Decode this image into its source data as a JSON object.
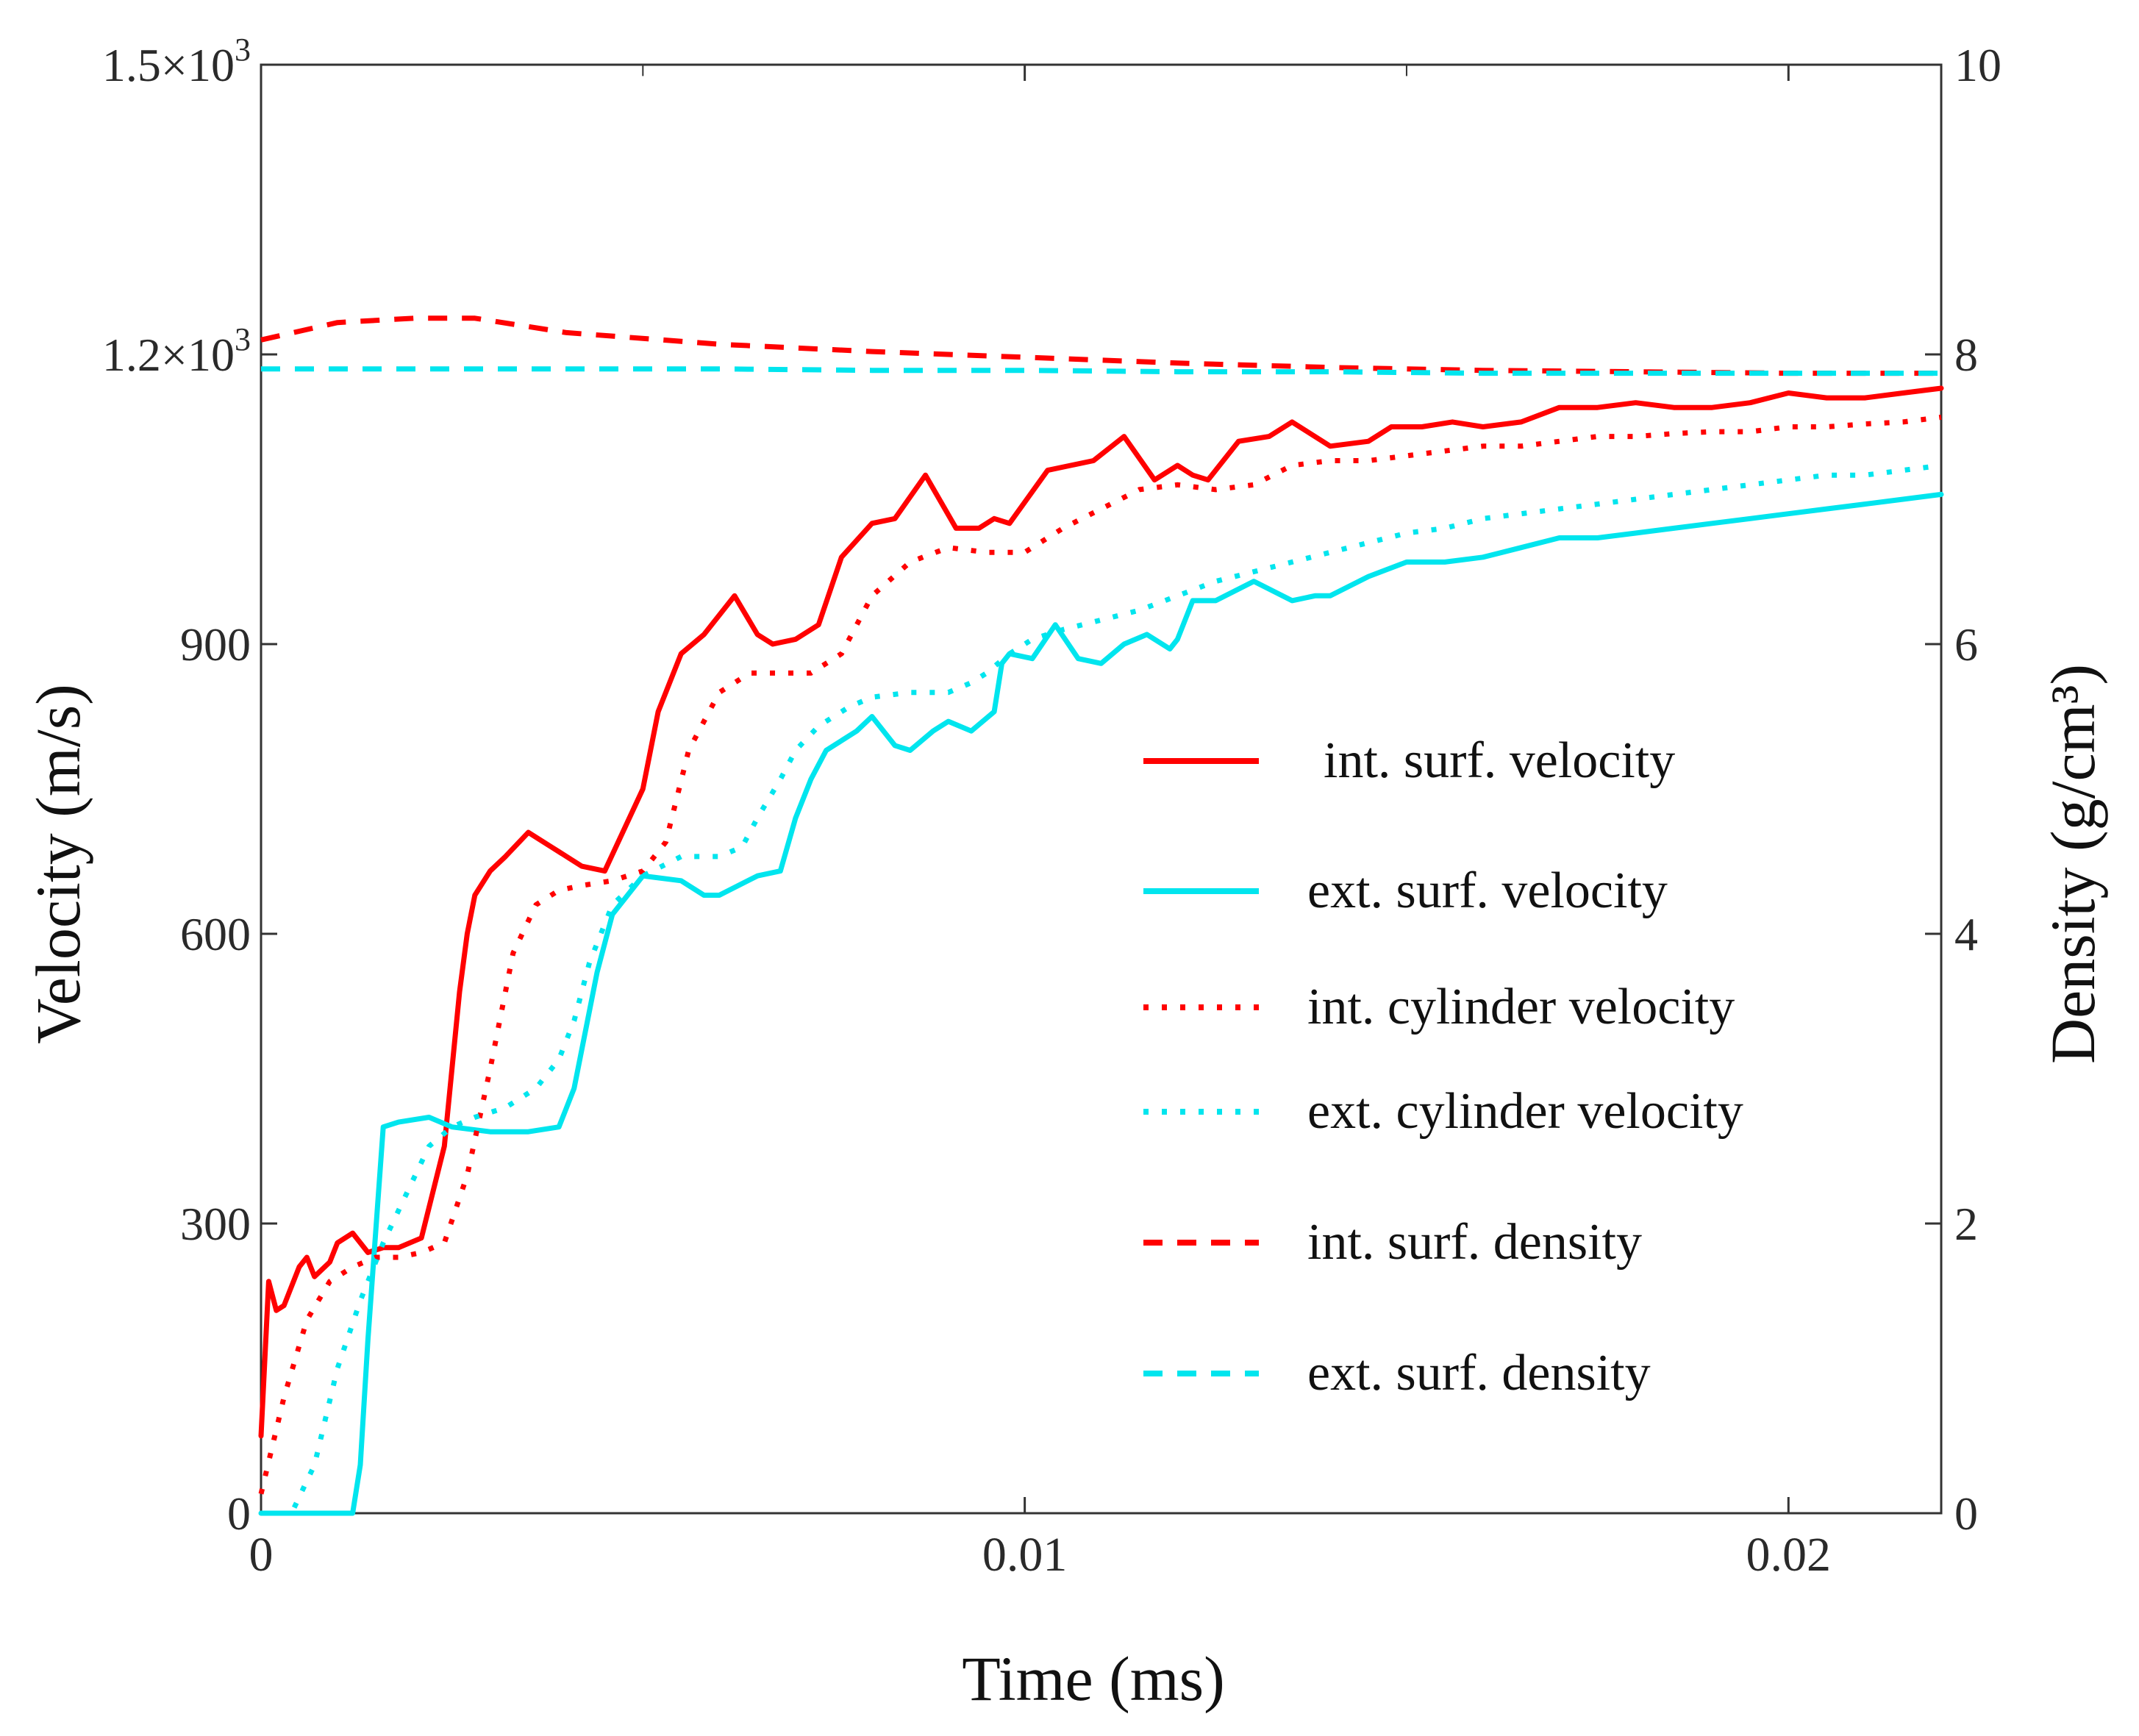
{
  "chart_data": {
    "type": "line",
    "title": "",
    "xlabel": "Time (ms)",
    "ylabel": "Velocity (m/s)",
    "y2label": "Density (g/cm³)",
    "xlim": [
      0,
      0.022
    ],
    "ylim": [
      0,
      1500
    ],
    "y2lim": [
      0,
      10
    ],
    "x_ticks": [
      {
        "value": 0,
        "label": "0"
      },
      {
        "value": 0.01,
        "label": "0.01"
      },
      {
        "value": 0.02,
        "label": "0.02"
      }
    ],
    "y_ticks": [
      {
        "value": 0,
        "label": "0"
      },
      {
        "value": 300,
        "label": "300"
      },
      {
        "value": 600,
        "label": "600"
      },
      {
        "value": 900,
        "label": "900"
      },
      {
        "value": 1200,
        "label": "1.2×10",
        "exp": "3"
      },
      {
        "value": 1500,
        "label": "1.5×10",
        "exp": "3"
      }
    ],
    "y2_ticks": [
      {
        "value": 0,
        "label": "0"
      },
      {
        "value": 2,
        "label": "2"
      },
      {
        "value": 4,
        "label": "4"
      },
      {
        "value": 6,
        "label": "6"
      },
      {
        "value": 8,
        "label": "8"
      },
      {
        "value": 10,
        "label": "10"
      }
    ],
    "grid": false,
    "legend_position": "right-middle",
    "series": [
      {
        "name": "int. surf. velocity",
        "color": "#ff0000",
        "style": "solid",
        "axis": "left",
        "x": [
          0,
          0.0001,
          0.0002,
          0.0003,
          0.0005,
          0.0006,
          0.0007,
          0.0009,
          0.001,
          0.0012,
          0.0014,
          0.0016,
          0.0018,
          0.0021,
          0.0024,
          0.0026,
          0.0027,
          0.0028,
          0.003,
          0.0032,
          0.0035,
          0.0038,
          0.004,
          0.0042,
          0.0045,
          0.005,
          0.0052,
          0.0055,
          0.0058,
          0.0062,
          0.0065,
          0.0067,
          0.007,
          0.0073,
          0.0076,
          0.008,
          0.0083,
          0.0087,
          0.0091,
          0.0094,
          0.0096,
          0.0098,
          0.0103,
          0.0106,
          0.0109,
          0.0113,
          0.0117,
          0.012,
          0.0122,
          0.0124,
          0.0128,
          0.0132,
          0.0135,
          0.014,
          0.0145,
          0.0148,
          0.0152,
          0.0156,
          0.016,
          0.0165,
          0.017,
          0.0175,
          0.018,
          0.0185,
          0.019,
          0.0195,
          0.02,
          0.0205,
          0.021,
          0.0215,
          0.022
        ],
        "values": [
          80,
          240,
          210,
          215,
          255,
          265,
          245,
          260,
          280,
          290,
          270,
          275,
          275,
          285,
          380,
          540,
          600,
          640,
          665,
          680,
          705,
          690,
          680,
          670,
          665,
          750,
          830,
          890,
          910,
          950,
          910,
          900,
          905,
          920,
          990,
          1025,
          1030,
          1075,
          1020,
          1020,
          1030,
          1025,
          1080,
          1085,
          1090,
          1115,
          1070,
          1085,
          1075,
          1070,
          1110,
          1115,
          1130,
          1105,
          1110,
          1125,
          1125,
          1130,
          1125,
          1130,
          1145,
          1145,
          1150,
          1145,
          1145,
          1150,
          1160,
          1155,
          1155,
          1160,
          1165
        ]
      },
      {
        "name": "ext. surf. velocity",
        "color": "#00e5ee",
        "style": "solid",
        "axis": "left",
        "x": [
          0,
          0.0012,
          0.0013,
          0.0014,
          0.0015,
          0.0016,
          0.0018,
          0.0022,
          0.0025,
          0.003,
          0.0035,
          0.0039,
          0.004,
          0.0041,
          0.0042,
          0.0044,
          0.0046,
          0.005,
          0.0055,
          0.0058,
          0.006,
          0.0065,
          0.0068,
          0.007,
          0.0072,
          0.0074,
          0.0076,
          0.0078,
          0.008,
          0.0083,
          0.0085,
          0.0088,
          0.009,
          0.0093,
          0.0096,
          0.0097,
          0.0098,
          0.0101,
          0.0104,
          0.0107,
          0.011,
          0.0113,
          0.0116,
          0.0119,
          0.012,
          0.0122,
          0.0125,
          0.013,
          0.0135,
          0.0138,
          0.014,
          0.0145,
          0.015,
          0.0155,
          0.016,
          0.0165,
          0.017,
          0.0175,
          0.018,
          0.0185,
          0.019,
          0.0195,
          0.02,
          0.0205,
          0.021,
          0.0215,
          0.022
        ],
        "values": [
          0,
          0,
          50,
          180,
          290,
          400,
          405,
          410,
          400,
          395,
          395,
          400,
          420,
          440,
          480,
          560,
          620,
          660,
          655,
          640,
          640,
          660,
          665,
          720,
          760,
          790,
          800,
          810,
          825,
          795,
          790,
          810,
          820,
          810,
          830,
          880,
          890,
          885,
          920,
          885,
          880,
          900,
          910,
          895,
          905,
          945,
          945,
          965,
          945,
          950,
          950,
          970,
          985,
          985,
          990,
          1000,
          1010,
          1010,
          1015,
          1020,
          1025,
          1030,
          1035,
          1040,
          1045,
          1050,
          1055
        ]
      },
      {
        "name": "int. cylinder velocity",
        "color": "#ff0000",
        "style": "dotted",
        "axis": "left",
        "x": [
          0,
          0.0003,
          0.0006,
          0.0009,
          0.0012,
          0.0015,
          0.0018,
          0.0021,
          0.0024,
          0.0027,
          0.003,
          0.0033,
          0.0036,
          0.0039,
          0.0042,
          0.0046,
          0.005,
          0.0053,
          0.0056,
          0.006,
          0.0064,
          0.0068,
          0.0072,
          0.0076,
          0.008,
          0.0085,
          0.009,
          0.0095,
          0.01,
          0.0105,
          0.011,
          0.0115,
          0.012,
          0.0125,
          0.013,
          0.0135,
          0.014,
          0.0145,
          0.015,
          0.0155,
          0.016,
          0.0165,
          0.017,
          0.0175,
          0.018,
          0.0185,
          0.019,
          0.0195,
          0.02,
          0.0205,
          0.021,
          0.0215,
          0.022
        ],
        "values": [
          20,
          120,
          200,
          240,
          255,
          265,
          265,
          270,
          280,
          350,
          460,
          580,
          630,
          645,
          650,
          655,
          665,
          695,
          790,
          850,
          870,
          870,
          870,
          890,
          950,
          985,
          1000,
          995,
          995,
          1020,
          1040,
          1060,
          1065,
          1060,
          1065,
          1085,
          1090,
          1090,
          1095,
          1100,
          1105,
          1105,
          1110,
          1115,
          1115,
          1118,
          1120,
          1120,
          1125,
          1125,
          1128,
          1130,
          1135
        ]
      },
      {
        "name": "ext. cylinder velocity",
        "color": "#00e5ee",
        "style": "dotted",
        "axis": "left",
        "x": [
          0,
          0.0004,
          0.0007,
          0.001,
          0.0013,
          0.0016,
          0.0019,
          0.0022,
          0.0025,
          0.0028,
          0.0032,
          0.0036,
          0.0039,
          0.0041,
          0.0043,
          0.0046,
          0.005,
          0.0055,
          0.006,
          0.0063,
          0.0065,
          0.0068,
          0.007,
          0.0073,
          0.0077,
          0.008,
          0.0085,
          0.009,
          0.0093,
          0.0095,
          0.0098,
          0.0101,
          0.0105,
          0.011,
          0.0115,
          0.012,
          0.0125,
          0.013,
          0.0135,
          0.014,
          0.0145,
          0.015,
          0.0155,
          0.016,
          0.0165,
          0.017,
          0.0175,
          0.018,
          0.0185,
          0.019,
          0.0195,
          0.02,
          0.0205,
          0.021,
          0.0215,
          0.022
        ],
        "values": [
          0,
          0,
          50,
          150,
          220,
          280,
          330,
          380,
          400,
          410,
          420,
          440,
          470,
          510,
          570,
          630,
          660,
          680,
          680,
          690,
          720,
          760,
          790,
          815,
          835,
          845,
          850,
          850,
          860,
          870,
          890,
          905,
          915,
          925,
          935,
          950,
          965,
          975,
          985,
          995,
          1005,
          1015,
          1020,
          1030,
          1035,
          1040,
          1045,
          1050,
          1055,
          1060,
          1065,
          1070,
          1075,
          1075,
          1080,
          1085
        ]
      },
      {
        "name": "int. surf. density",
        "color": "#ff0000",
        "style": "dashed",
        "axis": "right",
        "x": [
          0,
          0.001,
          0.002,
          0.0028,
          0.004,
          0.006,
          0.008,
          0.01,
          0.012,
          0.014,
          0.016,
          0.018,
          0.02,
          0.022
        ],
        "values": [
          8.1,
          8.22,
          8.25,
          8.25,
          8.15,
          8.07,
          8.02,
          7.98,
          7.94,
          7.91,
          7.89,
          7.88,
          7.87,
          7.87
        ]
      },
      {
        "name": "ext. surf. density",
        "color": "#00e5ee",
        "style": "dashed",
        "axis": "right",
        "x": [
          0,
          0.002,
          0.004,
          0.006,
          0.008,
          0.01,
          0.012,
          0.014,
          0.016,
          0.018,
          0.02,
          0.022
        ],
        "values": [
          7.9,
          7.9,
          7.9,
          7.9,
          7.89,
          7.89,
          7.88,
          7.88,
          7.87,
          7.87,
          7.87,
          7.87
        ]
      }
    ]
  }
}
